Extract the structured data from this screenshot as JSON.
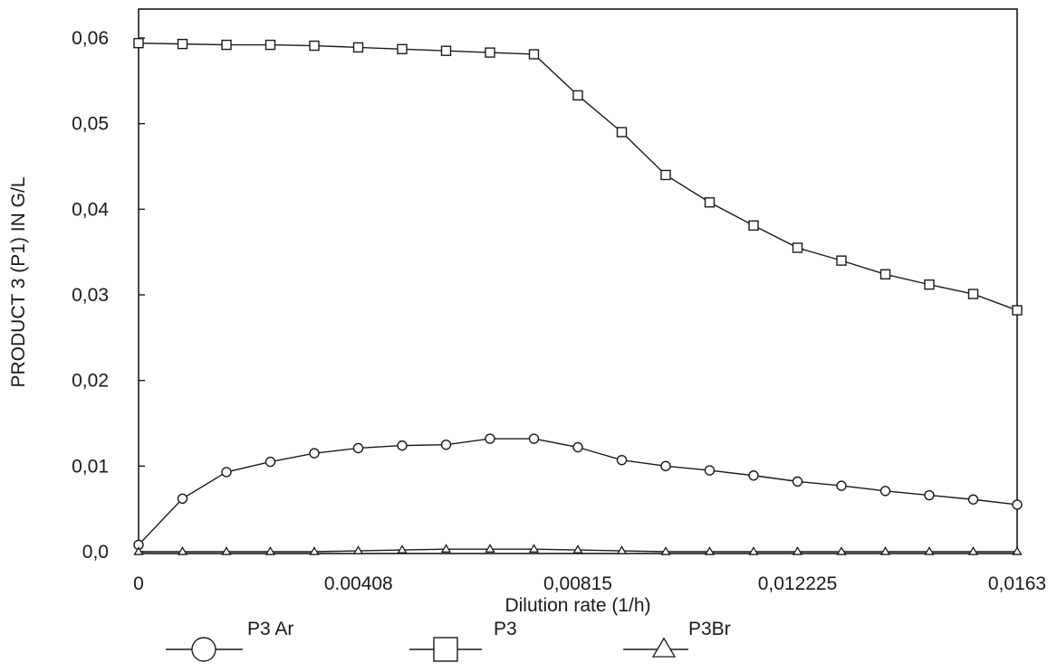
{
  "chart_data": {
    "type": "line",
    "title": "",
    "xlabel": "Dilution rate (1/h)",
    "ylabel": "PRODUCT  3 (P1) IN G/L",
    "xlim": [
      0,
      0.0163
    ],
    "ylim": [
      0,
      0.062
    ],
    "grid": false,
    "legend_position": "bottom",
    "x_ticks": [
      0,
      0.00408,
      0.00815,
      0.012225,
      0.0163
    ],
    "x_tick_labels": [
      "0",
      "0.00408",
      "0,00815",
      "0,012225",
      "0,0163"
    ],
    "y_ticks": [
      0,
      0.01,
      0.02,
      0.03,
      0.04,
      0.05,
      0.06
    ],
    "y_tick_labels": [
      "0,0",
      "0,01",
      "0,02",
      "0,03",
      "0,04",
      "0,05",
      "0,06"
    ],
    "x": [
      0,
      0.000815,
      0.00163,
      0.002445,
      0.00326,
      0.004075,
      0.00489,
      0.005705,
      0.00652,
      0.007335,
      0.00815,
      0.008965,
      0.00978,
      0.010595,
      0.01141,
      0.012225,
      0.01304,
      0.013855,
      0.01467,
      0.015485,
      0.0163
    ],
    "series": [
      {
        "name": "P3  Ar",
        "marker": "circle",
        "values": [
          0.0008,
          0.0062,
          0.0093,
          0.0105,
          0.0115,
          0.0121,
          0.0124,
          0.0125,
          0.0132,
          0.0132,
          0.0122,
          0.0107,
          0.01,
          0.0095,
          0.0089,
          0.0082,
          0.0077,
          0.0071,
          0.0066,
          0.0061,
          0.0055
        ]
      },
      {
        "name": "P3",
        "marker": "square",
        "values": [
          0.0594,
          0.0593,
          0.0592,
          0.0592,
          0.0591,
          0.0589,
          0.0587,
          0.0585,
          0.0583,
          0.0581,
          0.0533,
          0.049,
          0.044,
          0.0408,
          0.0381,
          0.0355,
          0.034,
          0.0324,
          0.0312,
          0.0301,
          0.0282
        ]
      },
      {
        "name": "P3Br",
        "marker": "triangle",
        "values": [
          0.0,
          0.0,
          0.0,
          0.0,
          0.0,
          0.0001,
          0.0002,
          0.0003,
          0.0003,
          0.0003,
          0.0002,
          0.0001,
          0.0,
          0.0,
          0.0,
          0.0,
          0.0,
          0.0,
          0.0,
          0.0,
          0.0
        ]
      }
    ]
  }
}
